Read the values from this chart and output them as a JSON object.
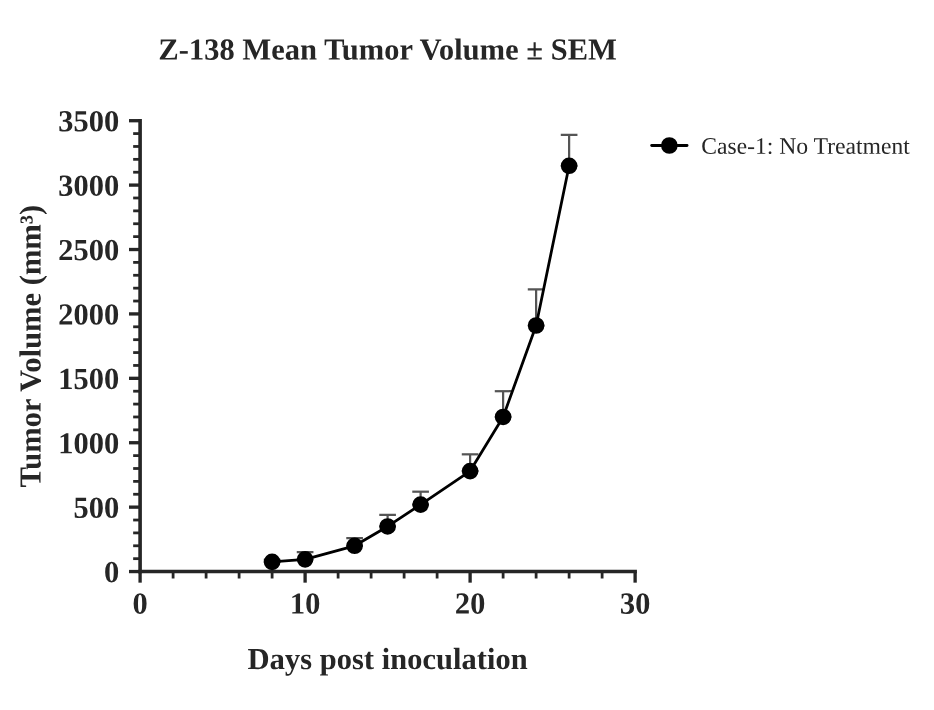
{
  "chart_data": {
    "type": "line",
    "title": "Z-138 Mean Tumor Volume ± SEM",
    "xlabel": "Days post inoculation",
    "ylabel": "Tumor Volume (mm³)",
    "x": [
      8,
      10,
      13,
      15,
      17,
      20,
      22,
      24,
      26
    ],
    "series": [
      {
        "name": "Case-1: No Treatment",
        "color": "#000000",
        "values": [
          75,
          95,
          200,
          350,
          520,
          780,
          1200,
          1910,
          3150
        ],
        "errors": [
          [
            75,
            90
          ],
          [
            95,
            150
          ],
          [
            200,
            260
          ],
          [
            350,
            440
          ],
          [
            520,
            620
          ],
          [
            780,
            910
          ],
          [
            1200,
            1400
          ],
          [
            1910,
            2190
          ],
          [
            3150,
            3390
          ]
        ]
      }
    ],
    "xlim": [
      0,
      30
    ],
    "xticks": [
      0,
      10,
      20,
      30
    ],
    "ylim": [
      0,
      3500
    ],
    "yticks": [
      0,
      500,
      1000,
      1500,
      2000,
      2500,
      3000,
      3500
    ],
    "marker": "circle",
    "line_style": "solid",
    "legend": "top right",
    "grid": false
  }
}
